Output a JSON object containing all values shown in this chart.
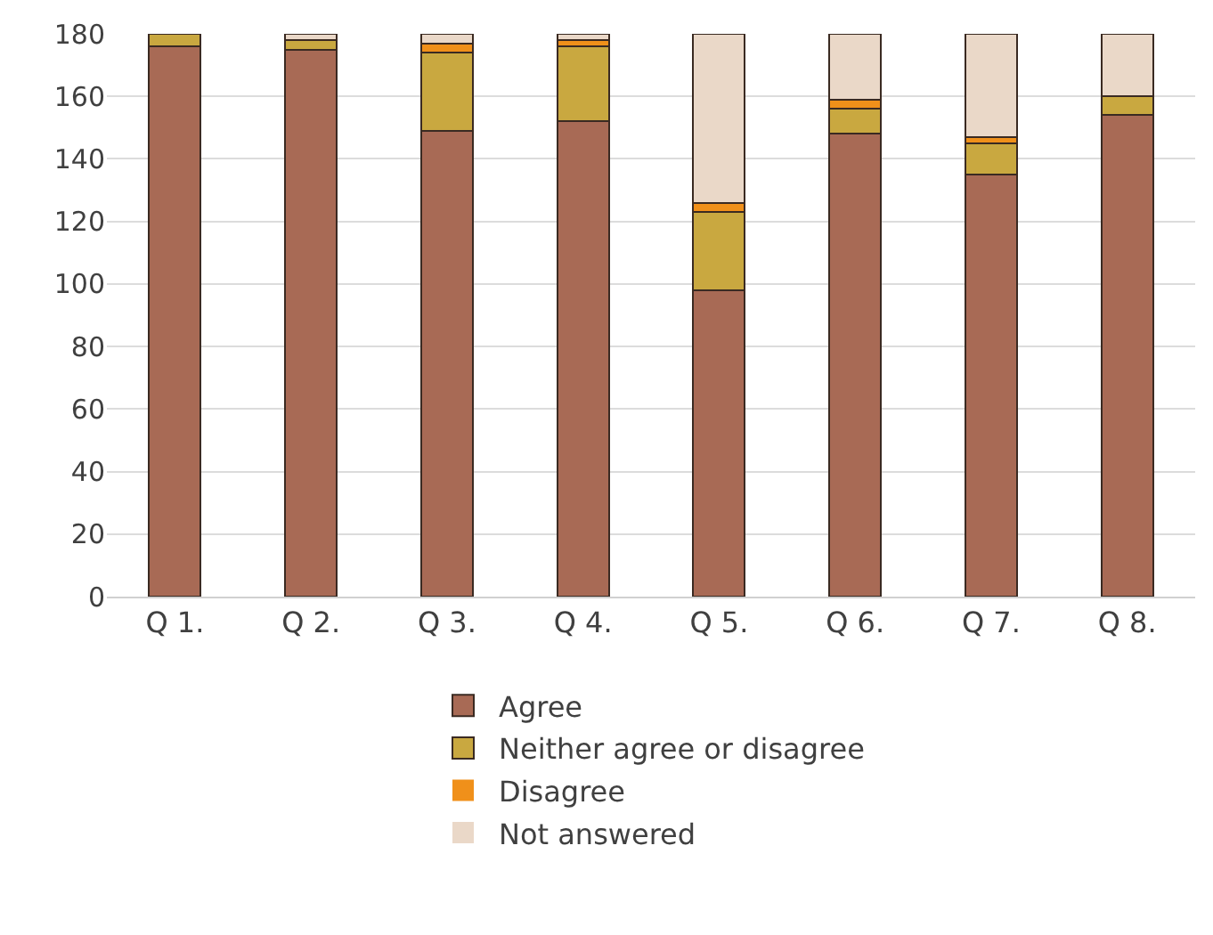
{
  "chart_data": {
    "type": "bar",
    "stacked": true,
    "categories": [
      "Q 1.",
      "Q 2.",
      "Q 3.",
      "Q 4.",
      "Q 5.",
      "Q 6.",
      "Q 7.",
      "Q 8."
    ],
    "series": [
      {
        "name": "Agree",
        "color": "#a86a55",
        "values": [
          176,
          175,
          149,
          152,
          98,
          148,
          135,
          154
        ]
      },
      {
        "name": "Neither agree or disagree",
        "color": "#c9a840",
        "values": [
          4,
          3,
          25,
          24,
          25,
          8,
          10,
          6
        ]
      },
      {
        "name": "Disagree",
        "color": "#f0901a",
        "values": [
          0,
          0,
          3,
          2,
          3,
          3,
          2,
          0
        ]
      },
      {
        "name": "Not answered",
        "color": "#ead8c8",
        "values": [
          0,
          2,
          3,
          2,
          54,
          21,
          33,
          20
        ]
      }
    ],
    "ylim": [
      0,
      180
    ],
    "yticks": [
      0,
      20,
      40,
      60,
      80,
      100,
      120,
      140,
      160,
      180
    ],
    "grid": "y",
    "legend": "bottom"
  }
}
